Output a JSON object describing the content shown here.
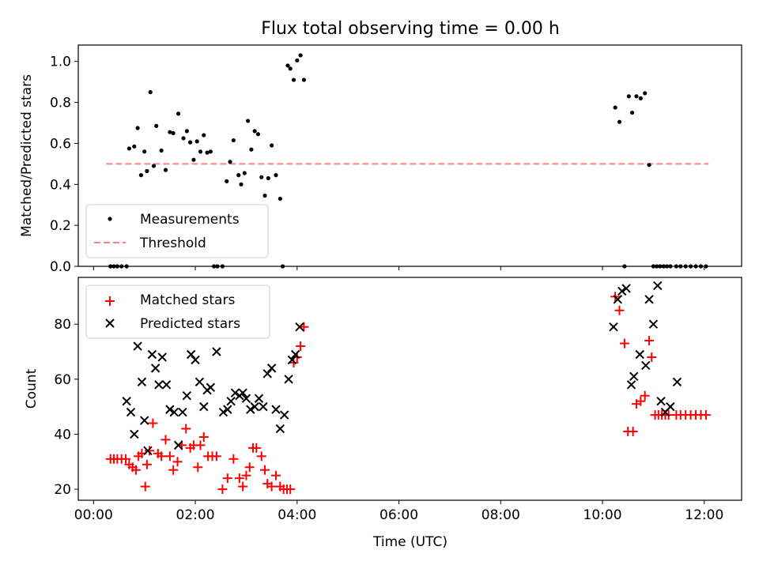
{
  "figure": {
    "title": "Flux total observing time = 0.00 h",
    "xlabel": "Time (UTC)"
  },
  "chart_data": [
    {
      "type": "scatter",
      "ylabel": "Matched/Predicted stars",
      "xlim": [
        "-0:18",
        "12:44"
      ],
      "ylim": [
        0,
        1.08
      ],
      "yticks": [
        0.0,
        0.2,
        0.4,
        0.6,
        0.8,
        1.0
      ],
      "ytick_labels": [
        "0.0",
        "0.2",
        "0.4",
        "0.6",
        "0.8",
        "1.0"
      ],
      "grid": false,
      "legend_position": "bottom-left",
      "series": [
        {
          "name": "Measurements",
          "color": "#000000",
          "marker": "dot",
          "x": [
            "0:20",
            "0:24",
            "0:28",
            "0:33",
            "0:39",
            "0:42",
            "0:48",
            "0:52",
            "0:56",
            "1:00",
            "1:03",
            "1:07",
            "1:11",
            "1:14",
            "1:20",
            "1:25",
            "1:30",
            "1:34",
            "1:40",
            "1:46",
            "1:50",
            "1:54",
            "1:58",
            "2:02",
            "2:06",
            "2:10",
            "2:14",
            "2:18",
            "2:22",
            "2:26",
            "2:32",
            "2:37",
            "2:41",
            "2:45",
            "2:51",
            "2:54",
            "2:58",
            "3:02",
            "3:06",
            "3:10",
            "3:14",
            "3:18",
            "3:22",
            "3:26",
            "3:30",
            "3:35",
            "3:40",
            "3:43",
            "3:49",
            "3:52",
            "3:56",
            "4:00",
            "4:04",
            "4:08",
            "10:15",
            "10:20",
            "10:26",
            "10:31",
            "10:35",
            "10:40",
            "10:45",
            "10:50",
            "10:55",
            "11:00",
            "11:04",
            "11:08",
            "11:12",
            "11:16",
            "11:20",
            "11:27",
            "11:32",
            "11:38",
            "11:44",
            "11:50",
            "11:56",
            "12:02"
          ],
          "y": [
            0.0,
            0.0,
            0.0,
            0.0,
            0.0,
            0.575,
            0.585,
            0.675,
            0.445,
            0.56,
            0.465,
            0.85,
            0.49,
            0.685,
            0.565,
            0.47,
            0.655,
            0.65,
            0.745,
            0.625,
            0.66,
            0.605,
            0.52,
            0.61,
            0.56,
            0.64,
            0.555,
            0.56,
            0.0,
            0.0,
            0.0,
            0.415,
            0.51,
            0.615,
            0.445,
            0.4,
            0.455,
            0.71,
            0.57,
            0.66,
            0.645,
            0.435,
            0.345,
            0.43,
            0.59,
            0.445,
            0.33,
            0.0,
            0.98,
            0.965,
            0.91,
            1.005,
            1.03,
            0.91,
            0.775,
            0.705,
            0.0,
            0.83,
            0.75,
            0.83,
            0.82,
            0.845,
            0.495,
            0.0,
            0.0,
            0.0,
            0.0,
            0.0,
            0.0,
            0.0,
            0.0,
            0.0,
            0.0,
            0.0,
            0.0,
            0.0
          ]
        },
        {
          "name": "Threshold",
          "color": "#ff8080",
          "style": "dashed",
          "x": [
            "0:15",
            "12:05"
          ],
          "y": [
            0.5,
            0.5
          ]
        }
      ]
    },
    {
      "type": "scatter",
      "ylabel": "Count",
      "xlim": [
        "-0:18",
        "12:44"
      ],
      "ylim": [
        16,
        97
      ],
      "yticks": [
        20,
        40,
        60,
        80
      ],
      "ytick_labels": [
        "20",
        "40",
        "60",
        "80"
      ],
      "xticks": [
        "0:00",
        "2:00",
        "4:00",
        "6:00",
        "8:00",
        "10:00",
        "12:00"
      ],
      "xtick_labels": [
        "00:00",
        "02:00",
        "04:00",
        "06:00",
        "08:00",
        "10:00",
        "12:00"
      ],
      "grid": false,
      "legend_position": "top-left",
      "series": [
        {
          "name": "Matched stars",
          "color": "#ff0000",
          "marker": "plus",
          "x": [
            "0:20",
            "0:24",
            "0:28",
            "0:33",
            "0:38",
            "0:42",
            "0:46",
            "0:50",
            "0:53",
            "0:57",
            "1:01",
            "1:03",
            "1:06",
            "1:10",
            "1:16",
            "1:20",
            "1:25",
            "1:30",
            "1:34",
            "1:39",
            "1:44",
            "1:49",
            "1:54",
            "1:58",
            "2:03",
            "2:06",
            "2:10",
            "2:15",
            "2:20",
            "2:25",
            "2:32",
            "2:38",
            "2:45",
            "2:52",
            "2:56",
            "3:00",
            "3:04",
            "3:08",
            "3:12",
            "3:18",
            "3:22",
            "3:25",
            "3:30",
            "3:35",
            "3:40",
            "3:44",
            "3:48",
            "3:52",
            "3:56",
            "4:00",
            "4:04",
            "4:08",
            "10:15",
            "10:20",
            "10:26",
            "10:30",
            "10:36",
            "10:40",
            "10:45",
            "10:50",
            "10:55",
            "10:58",
            "11:02",
            "11:06",
            "11:10",
            "11:14",
            "11:18",
            "11:27",
            "11:32",
            "11:38",
            "11:44",
            "11:50",
            "11:56",
            "12:02"
          ],
          "y": [
            31,
            31,
            31,
            31,
            31,
            29,
            28,
            27,
            32,
            33,
            21,
            29,
            34,
            44,
            33,
            32,
            38,
            32,
            27,
            30,
            36,
            42,
            35,
            36,
            28,
            36,
            39,
            32,
            32,
            32,
            20,
            24,
            31,
            24,
            21,
            25,
            28,
            35,
            35,
            32,
            27,
            22,
            21,
            25,
            21,
            20,
            20,
            20,
            66,
            68,
            72,
            79,
            90,
            85,
            73,
            41,
            41,
            51,
            52,
            54,
            74,
            68,
            47,
            47,
            47,
            47,
            47,
            47,
            47,
            47,
            47,
            47,
            47,
            47
          ]
        },
        {
          "name": "Predicted stars",
          "color": "#000000",
          "marker": "x",
          "x": [
            "0:39",
            "0:44",
            "0:48",
            "0:52",
            "0:57",
            "1:00",
            "1:04",
            "1:09",
            "1:13",
            "1:17",
            "1:21",
            "1:26",
            "1:30",
            "1:35",
            "1:40",
            "1:45",
            "1:50",
            "1:55",
            "2:00",
            "2:05",
            "2:10",
            "2:14",
            "2:18",
            "2:25",
            "2:33",
            "2:38",
            "2:42",
            "2:47",
            "2:52",
            "2:56",
            "3:00",
            "3:05",
            "3:10",
            "3:15",
            "3:20",
            "3:25",
            "3:30",
            "3:35",
            "3:40",
            "3:45",
            "3:50",
            "3:54",
            "3:58",
            "4:03",
            "10:13",
            "10:18",
            "10:23",
            "10:28",
            "10:34",
            "10:37",
            "10:44",
            "10:51",
            "10:55",
            "11:00",
            "11:05",
            "11:09",
            "11:14",
            "11:20",
            "11:28"
          ],
          "y": [
            52,
            48,
            40,
            72,
            59,
            45,
            34,
            69,
            64,
            58,
            68,
            58,
            49,
            48,
            36,
            48,
            54,
            69,
            67,
            59,
            50,
            56,
            57,
            70,
            48,
            49,
            52,
            55,
            54,
            55,
            53,
            49,
            50,
            53,
            50,
            62,
            64,
            49,
            42,
            47,
            60,
            67,
            69,
            79,
            79,
            89,
            92,
            93,
            58,
            61,
            69,
            65,
            89,
            80,
            94,
            52,
            48,
            50,
            59
          ],
          "x_note": ""
        }
      ]
    }
  ]
}
